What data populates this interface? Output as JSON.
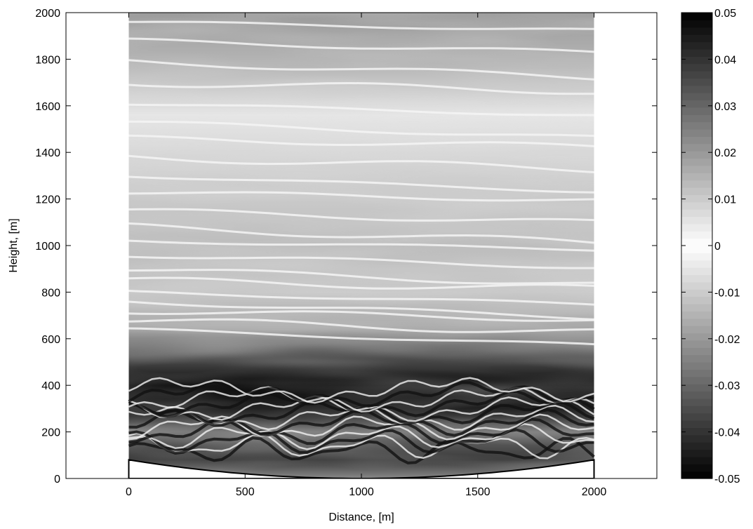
{
  "chart_data": {
    "type": "heatmap",
    "colormap": "gray",
    "xlabel": "Distance, [m]",
    "ylabel": "Height, [m]",
    "xlim": [
      -270,
      2270
    ],
    "ylim": [
      0,
      2000
    ],
    "xticks": [
      0,
      500,
      1000,
      1500,
      2000
    ],
    "yticks": [
      0,
      200,
      400,
      600,
      800,
      1000,
      1200,
      1400,
      1600,
      1800,
      2000
    ],
    "data_extent": {
      "x": [
        0,
        2000
      ],
      "y": [
        0,
        2000
      ]
    },
    "terrain": {
      "x": [
        0,
        1000,
        2000
      ],
      "y": [
        80,
        0,
        80
      ]
    },
    "colorbar": {
      "clim": [
        -0.05,
        0.05
      ],
      "ticks": [
        0.05,
        0.04,
        0.03,
        0.02,
        0.01,
        0,
        -0.01,
        -0.02,
        -0.03,
        -0.04,
        -0.05
      ],
      "tick_labels": [
        "0.05",
        "0.04",
        "0.03",
        "0.02",
        "0.01",
        "0",
        "-0.01",
        "-0.02",
        "-0.03",
        "-0.04",
        "-0.05"
      ]
    },
    "grid": false
  }
}
